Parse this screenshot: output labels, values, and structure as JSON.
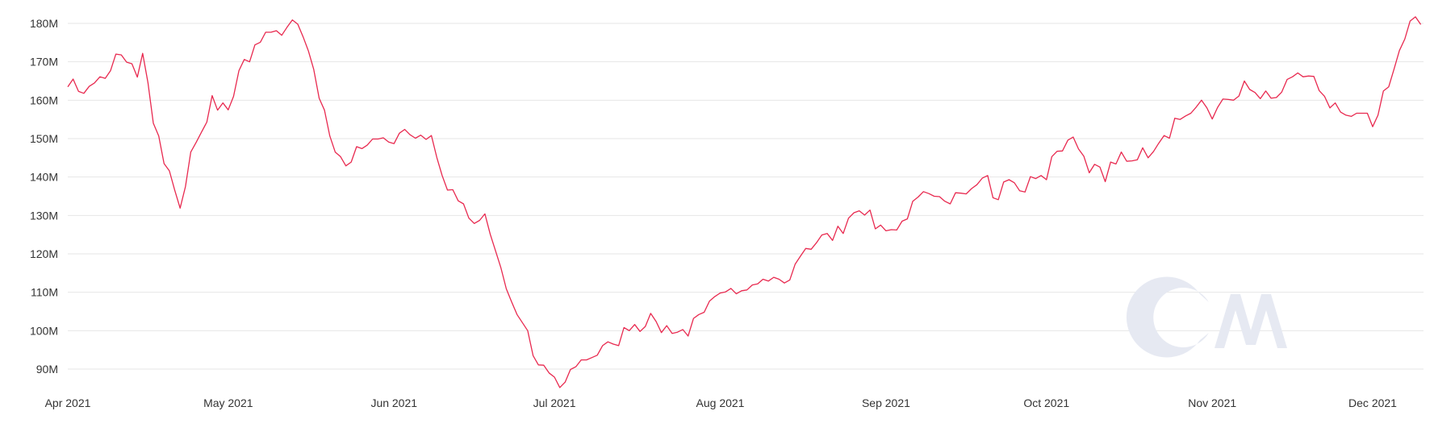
{
  "chart_data": {
    "type": "line",
    "title": "",
    "xlabel": "",
    "ylabel": "",
    "grid": true,
    "legend": "none",
    "line_color": "#e8294f",
    "grid_color": "#e6e6e6",
    "ylim": [
      84000000,
      182000000
    ],
    "xlim": [
      "2021-04-01",
      "2021-12-08"
    ],
    "y_ticks": [
      {
        "value": 90000000,
        "label": "90M"
      },
      {
        "value": 100000000,
        "label": "100M"
      },
      {
        "value": 110000000,
        "label": "110M"
      },
      {
        "value": 120000000,
        "label": "120M"
      },
      {
        "value": 130000000,
        "label": "130M"
      },
      {
        "value": 140000000,
        "label": "140M"
      },
      {
        "value": 150000000,
        "label": "150M"
      },
      {
        "value": 160000000,
        "label": "160M"
      },
      {
        "value": 170000000,
        "label": "170M"
      },
      {
        "value": 180000000,
        "label": "180M"
      }
    ],
    "x_ticks": [
      {
        "date": "2021-04-01",
        "label": "Apr 2021"
      },
      {
        "date": "2021-05-01",
        "label": "May 2021"
      },
      {
        "date": "2021-06-01",
        "label": "Jun 2021"
      },
      {
        "date": "2021-07-01",
        "label": "Jul 2021"
      },
      {
        "date": "2021-08-01",
        "label": "Aug 2021"
      },
      {
        "date": "2021-09-01",
        "label": "Sep 2021"
      },
      {
        "date": "2021-10-01",
        "label": "Oct 2021"
      },
      {
        "date": "2021-11-01",
        "label": "Nov 2021"
      },
      {
        "date": "2021-12-01",
        "label": "Dec 2021"
      }
    ],
    "series": [
      {
        "points": [
          [
            "2021-04-01",
            163.5
          ],
          [
            "2021-04-02",
            165.5
          ],
          [
            "2021-04-03",
            162.3
          ],
          [
            "2021-04-04",
            161.8
          ],
          [
            "2021-04-05",
            163.6
          ],
          [
            "2021-04-06",
            164.5
          ],
          [
            "2021-04-07",
            166.1
          ],
          [
            "2021-04-08",
            165.7
          ],
          [
            "2021-04-09",
            167.7
          ],
          [
            "2021-04-10",
            172.0
          ],
          [
            "2021-04-11",
            171.8
          ],
          [
            "2021-04-12",
            169.9
          ],
          [
            "2021-04-13",
            169.5
          ],
          [
            "2021-04-14",
            166.0
          ],
          [
            "2021-04-15",
            172.2
          ],
          [
            "2021-04-16",
            164.5
          ],
          [
            "2021-04-17",
            154.0
          ],
          [
            "2021-04-18",
            150.7
          ],
          [
            "2021-04-19",
            143.5
          ],
          [
            "2021-04-20",
            141.6
          ],
          [
            "2021-04-21",
            136.6
          ],
          [
            "2021-04-22",
            131.9
          ],
          [
            "2021-04-23",
            137.5
          ],
          [
            "2021-04-24",
            146.5
          ],
          [
            "2021-04-25",
            149.0
          ],
          [
            "2021-04-26",
            151.7
          ],
          [
            "2021-04-27",
            154.3
          ],
          [
            "2021-04-28",
            161.2
          ],
          [
            "2021-04-29",
            157.4
          ],
          [
            "2021-04-30",
            159.3
          ],
          [
            "2021-05-01",
            157.5
          ],
          [
            "2021-05-02",
            161.0
          ],
          [
            "2021-05-03",
            167.7
          ],
          [
            "2021-05-04",
            170.6
          ],
          [
            "2021-05-05",
            170.0
          ],
          [
            "2021-05-06",
            174.4
          ],
          [
            "2021-05-07",
            175.1
          ],
          [
            "2021-05-08",
            177.7
          ],
          [
            "2021-05-09",
            177.7
          ],
          [
            "2021-05-10",
            178.1
          ],
          [
            "2021-05-11",
            176.9
          ],
          [
            "2021-05-12",
            179.0
          ],
          [
            "2021-05-13",
            180.9
          ],
          [
            "2021-05-14",
            179.8
          ],
          [
            "2021-05-15",
            176.5
          ],
          [
            "2021-05-16",
            172.8
          ],
          [
            "2021-05-17",
            168.0
          ],
          [
            "2021-05-18",
            160.5
          ],
          [
            "2021-05-19",
            157.4
          ],
          [
            "2021-05-20",
            150.7
          ],
          [
            "2021-05-21",
            146.5
          ],
          [
            "2021-05-22",
            145.3
          ],
          [
            "2021-05-23",
            142.9
          ],
          [
            "2021-05-24",
            143.9
          ],
          [
            "2021-05-25",
            147.9
          ],
          [
            "2021-05-26",
            147.4
          ],
          [
            "2021-05-27",
            148.3
          ],
          [
            "2021-05-28",
            149.9
          ],
          [
            "2021-05-29",
            149.9
          ],
          [
            "2021-05-30",
            150.2
          ],
          [
            "2021-05-31",
            149.1
          ],
          [
            "2021-06-01",
            148.7
          ],
          [
            "2021-06-02",
            151.4
          ],
          [
            "2021-06-03",
            152.4
          ],
          [
            "2021-06-04",
            151.0
          ],
          [
            "2021-06-05",
            150.1
          ],
          [
            "2021-06-06",
            150.9
          ],
          [
            "2021-06-07",
            149.8
          ],
          [
            "2021-06-08",
            150.8
          ],
          [
            "2021-06-09",
            145.1
          ],
          [
            "2021-06-10",
            140.4
          ],
          [
            "2021-06-11",
            136.6
          ],
          [
            "2021-06-12",
            136.7
          ],
          [
            "2021-06-13",
            133.8
          ],
          [
            "2021-06-14",
            133.0
          ],
          [
            "2021-06-15",
            129.3
          ],
          [
            "2021-06-16",
            127.9
          ],
          [
            "2021-06-17",
            128.7
          ],
          [
            "2021-06-18",
            130.4
          ],
          [
            "2021-06-19",
            125.1
          ],
          [
            "2021-06-20",
            120.7
          ],
          [
            "2021-06-21",
            116.3
          ],
          [
            "2021-06-22",
            110.9
          ],
          [
            "2021-06-23",
            107.5
          ],
          [
            "2021-06-24",
            104.2
          ],
          [
            "2021-06-25",
            102.1
          ],
          [
            "2021-06-26",
            100.0
          ],
          [
            "2021-06-27",
            93.5
          ],
          [
            "2021-06-28",
            91.1
          ],
          [
            "2021-06-29",
            91.0
          ],
          [
            "2021-06-30",
            89.0
          ],
          [
            "2021-07-01",
            87.9
          ],
          [
            "2021-07-02",
            85.2
          ],
          [
            "2021-07-03",
            86.6
          ],
          [
            "2021-07-04",
            89.9
          ],
          [
            "2021-07-05",
            90.6
          ],
          [
            "2021-07-06",
            92.4
          ],
          [
            "2021-07-07",
            92.4
          ],
          [
            "2021-07-08",
            93.0
          ],
          [
            "2021-07-09",
            93.6
          ],
          [
            "2021-07-10",
            96.1
          ],
          [
            "2021-07-11",
            97.1
          ],
          [
            "2021-07-12",
            96.5
          ],
          [
            "2021-07-13",
            96.1
          ],
          [
            "2021-07-14",
            100.8
          ],
          [
            "2021-07-15",
            100.0
          ],
          [
            "2021-07-16",
            101.6
          ],
          [
            "2021-07-17",
            99.8
          ],
          [
            "2021-07-18",
            101.1
          ],
          [
            "2021-07-19",
            104.5
          ],
          [
            "2021-07-20",
            102.4
          ],
          [
            "2021-07-21",
            99.5
          ],
          [
            "2021-07-22",
            101.3
          ],
          [
            "2021-07-23",
            99.3
          ],
          [
            "2021-07-24",
            99.6
          ],
          [
            "2021-07-25",
            100.3
          ],
          [
            "2021-07-26",
            98.6
          ],
          [
            "2021-07-27",
            103.2
          ],
          [
            "2021-07-28",
            104.2
          ],
          [
            "2021-07-29",
            104.8
          ],
          [
            "2021-07-30",
            107.7
          ],
          [
            "2021-07-31",
            108.9
          ],
          [
            "2021-08-01",
            109.8
          ],
          [
            "2021-08-02",
            110.1
          ],
          [
            "2021-08-03",
            111.0
          ],
          [
            "2021-08-04",
            109.6
          ],
          [
            "2021-08-05",
            110.4
          ],
          [
            "2021-08-06",
            110.6
          ],
          [
            "2021-08-07",
            111.9
          ],
          [
            "2021-08-08",
            112.2
          ],
          [
            "2021-08-09",
            113.4
          ],
          [
            "2021-08-10",
            112.9
          ],
          [
            "2021-08-11",
            113.9
          ],
          [
            "2021-08-12",
            113.4
          ],
          [
            "2021-08-13",
            112.4
          ],
          [
            "2021-08-14",
            113.2
          ],
          [
            "2021-08-15",
            117.3
          ],
          [
            "2021-08-16",
            119.4
          ],
          [
            "2021-08-17",
            121.4
          ],
          [
            "2021-08-18",
            121.2
          ],
          [
            "2021-08-19",
            122.9
          ],
          [
            "2021-08-20",
            124.9
          ],
          [
            "2021-08-21",
            125.3
          ],
          [
            "2021-08-22",
            123.5
          ],
          [
            "2021-08-23",
            127.2
          ],
          [
            "2021-08-24",
            125.3
          ],
          [
            "2021-08-25",
            129.3
          ],
          [
            "2021-08-26",
            130.7
          ],
          [
            "2021-08-27",
            131.2
          ],
          [
            "2021-08-28",
            130.1
          ],
          [
            "2021-08-29",
            131.4
          ],
          [
            "2021-08-30",
            126.5
          ],
          [
            "2021-08-31",
            127.5
          ],
          [
            "2021-09-01",
            126.0
          ],
          [
            "2021-09-02",
            126.3
          ],
          [
            "2021-09-03",
            126.2
          ],
          [
            "2021-09-04",
            128.5
          ],
          [
            "2021-09-05",
            129.1
          ],
          [
            "2021-09-06",
            133.7
          ],
          [
            "2021-09-07",
            134.8
          ],
          [
            "2021-09-08",
            136.2
          ],
          [
            "2021-09-09",
            135.7
          ],
          [
            "2021-09-10",
            135.0
          ],
          [
            "2021-09-11",
            134.9
          ],
          [
            "2021-09-12",
            133.7
          ],
          [
            "2021-09-13",
            133.0
          ],
          [
            "2021-09-14",
            135.9
          ],
          [
            "2021-09-15",
            135.8
          ],
          [
            "2021-09-16",
            135.6
          ],
          [
            "2021-09-17",
            137.0
          ],
          [
            "2021-09-18",
            138.0
          ],
          [
            "2021-09-19",
            139.7
          ],
          [
            "2021-09-20",
            140.4
          ],
          [
            "2021-09-21",
            134.6
          ],
          [
            "2021-09-22",
            134.1
          ],
          [
            "2021-09-23",
            138.7
          ],
          [
            "2021-09-24",
            139.3
          ],
          [
            "2021-09-25",
            138.5
          ],
          [
            "2021-09-26",
            136.4
          ],
          [
            "2021-09-27",
            136.1
          ],
          [
            "2021-09-28",
            140.1
          ],
          [
            "2021-09-29",
            139.6
          ],
          [
            "2021-09-30",
            140.4
          ],
          [
            "2021-10-01",
            139.3
          ],
          [
            "2021-10-02",
            145.3
          ],
          [
            "2021-10-03",
            146.7
          ],
          [
            "2021-10-04",
            146.8
          ],
          [
            "2021-10-05",
            149.6
          ],
          [
            "2021-10-06",
            150.4
          ],
          [
            "2021-10-07",
            147.3
          ],
          [
            "2021-10-08",
            145.4
          ],
          [
            "2021-10-09",
            141.1
          ],
          [
            "2021-10-10",
            143.3
          ],
          [
            "2021-10-11",
            142.6
          ],
          [
            "2021-10-12",
            138.8
          ],
          [
            "2021-10-13",
            143.9
          ],
          [
            "2021-10-14",
            143.4
          ],
          [
            "2021-10-15",
            146.5
          ],
          [
            "2021-10-16",
            144.1
          ],
          [
            "2021-10-17",
            144.2
          ],
          [
            "2021-10-18",
            144.5
          ],
          [
            "2021-10-19",
            147.6
          ],
          [
            "2021-10-20",
            145.0
          ],
          [
            "2021-10-21",
            146.6
          ],
          [
            "2021-10-22",
            148.8
          ],
          [
            "2021-10-23",
            150.8
          ],
          [
            "2021-10-24",
            150.1
          ],
          [
            "2021-10-25",
            155.3
          ],
          [
            "2021-10-26",
            155.0
          ],
          [
            "2021-10-27",
            155.9
          ],
          [
            "2021-10-28",
            156.6
          ],
          [
            "2021-10-29",
            158.2
          ],
          [
            "2021-10-30",
            160.0
          ],
          [
            "2021-10-31",
            158.0
          ],
          [
            "2021-11-01",
            155.1
          ],
          [
            "2021-11-02",
            158.1
          ],
          [
            "2021-11-03",
            160.3
          ],
          [
            "2021-11-04",
            160.2
          ],
          [
            "2021-11-05",
            160.0
          ],
          [
            "2021-11-06",
            161.1
          ],
          [
            "2021-11-07",
            165.0
          ],
          [
            "2021-11-08",
            162.8
          ],
          [
            "2021-11-09",
            162.0
          ],
          [
            "2021-11-10",
            160.4
          ],
          [
            "2021-11-11",
            162.4
          ],
          [
            "2021-11-12",
            160.5
          ],
          [
            "2021-11-13",
            160.7
          ],
          [
            "2021-11-14",
            162.1
          ],
          [
            "2021-11-15",
            165.4
          ],
          [
            "2021-11-16",
            166.1
          ],
          [
            "2021-11-17",
            167.1
          ],
          [
            "2021-11-18",
            166.1
          ],
          [
            "2021-11-19",
            166.3
          ],
          [
            "2021-11-20",
            166.2
          ],
          [
            "2021-11-21",
            162.5
          ],
          [
            "2021-11-22",
            161.0
          ],
          [
            "2021-11-23",
            158.0
          ],
          [
            "2021-11-24",
            159.3
          ],
          [
            "2021-11-25",
            156.9
          ],
          [
            "2021-11-26",
            156.1
          ],
          [
            "2021-11-27",
            155.8
          ],
          [
            "2021-11-28",
            156.6
          ],
          [
            "2021-11-29",
            156.6
          ],
          [
            "2021-11-30",
            156.6
          ],
          [
            "2021-12-01",
            153.1
          ],
          [
            "2021-12-02",
            156.1
          ],
          [
            "2021-12-03",
            162.4
          ],
          [
            "2021-12-04",
            163.5
          ],
          [
            "2021-12-05",
            168.1
          ],
          [
            "2021-12-06",
            172.9
          ],
          [
            "2021-12-07",
            175.9
          ],
          [
            "2021-12-08",
            180.6
          ],
          [
            "2021-12-09",
            181.7
          ],
          [
            "2021-12-10",
            179.7
          ]
        ]
      }
    ]
  }
}
